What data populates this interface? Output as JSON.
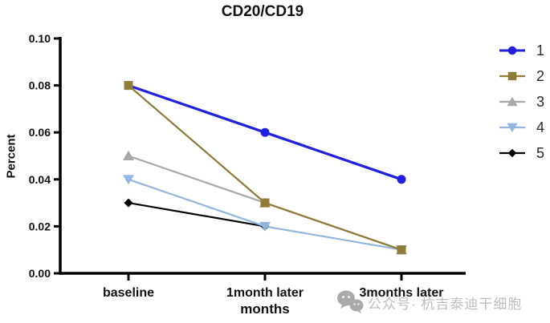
{
  "title": "CD20/CD19",
  "watermark": {
    "icon": "wechat-icon",
    "text": "公众号· 杭吉泰迪干细胞",
    "color": "#bdbdbd"
  },
  "chart_data": {
    "type": "line",
    "title": "CD20/CD19",
    "xlabel": "months",
    "ylabel": "Percent",
    "categories": [
      "baseline",
      "1month later",
      "3months later"
    ],
    "ylim": [
      0.0,
      0.1
    ],
    "y_ticks": [
      0.0,
      0.02,
      0.04,
      0.06,
      0.08,
      0.1
    ],
    "y_tick_labels": [
      "0.00",
      "0.02",
      "0.04",
      "0.06",
      "0.08",
      "0.10"
    ],
    "grid": false,
    "legend_position": "right",
    "axis_color": "#000000",
    "series": [
      {
        "name": "1",
        "color": "#2020e0",
        "marker": "circle",
        "values": [
          0.08,
          0.06,
          0.04
        ]
      },
      {
        "name": "2",
        "color": "#8f7b35",
        "marker": "square",
        "values": [
          0.08,
          0.03,
          0.01
        ]
      },
      {
        "name": "3",
        "color": "#a8a8a8",
        "marker": "triangle-up",
        "values": [
          0.05,
          0.03,
          0.01
        ]
      },
      {
        "name": "4",
        "color": "#92b5dd",
        "marker": "triangle-down",
        "values": [
          0.04,
          0.02,
          0.01
        ]
      },
      {
        "name": "5",
        "color": "#000000",
        "marker": "diamond",
        "values": [
          0.03,
          0.02,
          null
        ]
      }
    ]
  }
}
